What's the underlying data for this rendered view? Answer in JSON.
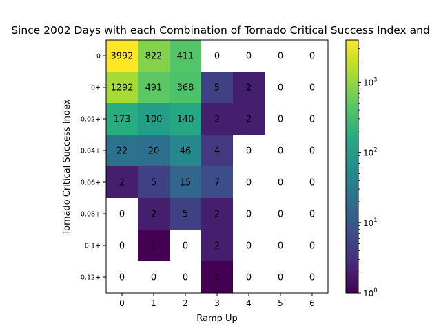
{
  "chart_data": {
    "type": "heatmap",
    "title": "Since 2002 Days with each Combination of Tornado Critical Success Index and",
    "xlabel": "Ramp Up",
    "ylabel": "Tornado Critical Success Index",
    "x_categories": [
      "0",
      "1",
      "2",
      "3",
      "4",
      "5",
      "6"
    ],
    "y_categories": [
      "0",
      "0+",
      "0.02+",
      "0.04+",
      "0.06+",
      "0.08+",
      "0.1+",
      "0.12+"
    ],
    "values": [
      [
        3992,
        822,
        411,
        0,
        0,
        0,
        0
      ],
      [
        1292,
        491,
        368,
        5,
        2,
        0,
        0
      ],
      [
        173,
        100,
        140,
        2,
        2,
        0,
        0
      ],
      [
        22,
        20,
        46,
        4,
        0,
        0,
        0
      ],
      [
        2,
        5,
        15,
        7,
        0,
        0,
        0
      ],
      [
        0,
        2,
        5,
        2,
        0,
        0,
        0
      ],
      [
        0,
        1,
        0,
        2,
        0,
        0,
        0
      ],
      [
        0,
        0,
        0,
        1,
        0,
        0,
        0
      ]
    ],
    "color_scale": "log",
    "colormap": "viridis",
    "zero_color": "#ffffff",
    "colorbar": {
      "min": 1,
      "max": 3992,
      "tick_labels": [
        {
          "value": 1,
          "base": "10",
          "exp": "0"
        },
        {
          "value": 10,
          "base": "10",
          "exp": "1"
        },
        {
          "value": 100,
          "base": "10",
          "exp": "2"
        },
        {
          "value": 1000,
          "base": "10",
          "exp": "3"
        }
      ]
    },
    "grid": false
  }
}
